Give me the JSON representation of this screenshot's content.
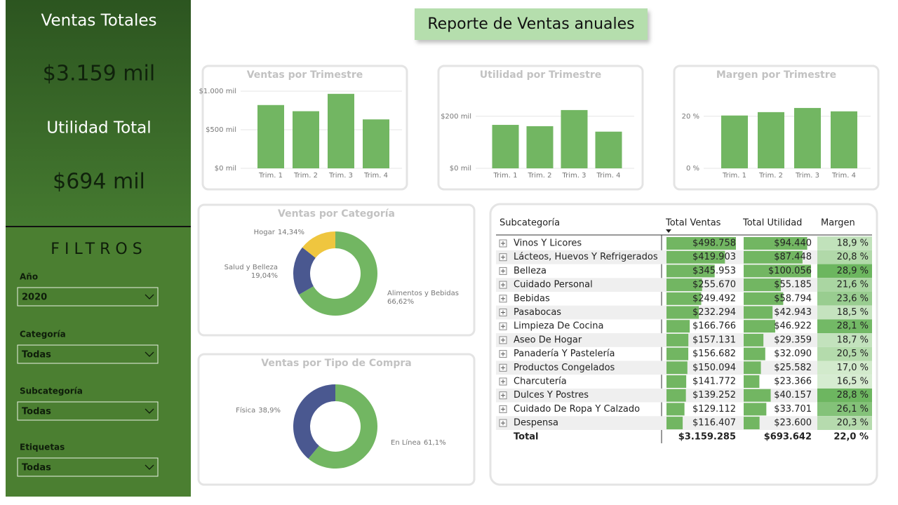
{
  "sidebar": {
    "kpis": [
      {
        "label": "Ventas Totales",
        "value": "$3.159 mil"
      },
      {
        "label": "Utilidad Total",
        "value": "$694 mil"
      }
    ],
    "filters_title": "FILTROS",
    "filters": [
      {
        "label": "Año",
        "value": "2020"
      },
      {
        "label": "Categoría",
        "value": "Todas"
      },
      {
        "label": "Subcategoría",
        "value": "Todas"
      },
      {
        "label": "Etiquetas",
        "value": "Todas"
      }
    ]
  },
  "header": {
    "title": "Reporte de Ventas anuales"
  },
  "chart_data": [
    {
      "type": "bar",
      "title": "Ventas por Trimestre",
      "categories": [
        "Trim. 1",
        "Trim. 2",
        "Trim. 3",
        "Trim. 4"
      ],
      "values": [
        820,
        740,
        965,
        634
      ],
      "color": "#72b662",
      "ylim": [
        0,
        1045
      ],
      "yticks": [
        {
          "value": 0,
          "label": "$0 mil"
        },
        {
          "value": 500,
          "label": "$500 mil"
        },
        {
          "value": 1000,
          "label": "$1.000 mil"
        }
      ],
      "grid": true
    },
    {
      "type": "bar",
      "title": "Utilidad por Trimestre",
      "categories": [
        "Trim. 1",
        "Trim. 2",
        "Trim. 3",
        "Trim. 4"
      ],
      "values": [
        167,
        162,
        224,
        141
      ],
      "color": "#72b662",
      "ylim": [
        0,
        310
      ],
      "yticks": [
        {
          "value": 0,
          "label": "$0 mil"
        },
        {
          "value": 200,
          "label": "$200 mil"
        }
      ],
      "grid": true
    },
    {
      "type": "bar",
      "title": "Margen por Trimestre",
      "categories": [
        "Trim. 1",
        "Trim. 2",
        "Trim. 3",
        "Trim. 4"
      ],
      "values": [
        20.3,
        21.6,
        23.2,
        21.9
      ],
      "color": "#72b662",
      "ylim": [
        0,
        31
      ],
      "yticks": [
        {
          "value": 0,
          "label": "0 %"
        },
        {
          "value": 20,
          "label": "20 %"
        }
      ],
      "grid": true
    },
    {
      "type": "pie",
      "title": "Ventas por Categoría",
      "categories": [
        "Alimentos y Bebidas",
        "Salud y Belleza",
        "Hogar"
      ],
      "values": [
        66.62,
        19.04,
        14.34
      ],
      "value_labels": [
        "66,62%",
        "19,04%",
        "14,34%"
      ],
      "colors": [
        "#72b662",
        "#4a5890",
        "#efc63f"
      ]
    },
    {
      "type": "pie",
      "title": "Ventas por Tipo de Compra",
      "categories": [
        "En Línea",
        "Física"
      ],
      "values": [
        61.1,
        38.9
      ],
      "value_labels": [
        "61,1%",
        "38,9%"
      ],
      "colors": [
        "#72b662",
        "#4a5890"
      ]
    }
  ],
  "table": {
    "columns": [
      "Subcategoría",
      "Total Ventas",
      "Total Utilidad",
      "Margen"
    ],
    "rows": [
      "Vinos Y Licores",
      "Lácteos, Huevos Y Refrigerados",
      "Belleza",
      "Cuidado Personal",
      "Bebidas",
      "Pasabocas",
      "Limpieza De Cocina",
      "Aseo De Hogar",
      "Panadería Y Pastelería",
      "Productos Congelados",
      "Charcutería",
      "Dulces Y Postres",
      "Cuidado De Ropa Y Calzado",
      "Despensa"
    ],
    "total_ventas": {
      "values": [
        498758,
        419903,
        345953,
        255670,
        249492,
        232294,
        166766,
        157131,
        156682,
        150094,
        141772,
        139252,
        129112,
        116407
      ],
      "value_labels": [
        "$498.758",
        "$419.903",
        "$345.953",
        "$255.670",
        "$249.492",
        "$232.294",
        "$166.766",
        "$157.131",
        "$156.682",
        "$150.094",
        "$141.772",
        "$139.252",
        "$129.112",
        "$116.407"
      ]
    },
    "total_utilidad": {
      "values": [
        94440,
        87448,
        100056,
        55185,
        58794,
        42943,
        46922,
        29359,
        32090,
        25582,
        23366,
        40157,
        33701,
        23600
      ],
      "value_labels": [
        "$94.440",
        "$87.448",
        "$100.056",
        "$55.185",
        "$58.794",
        "$42.943",
        "$46.922",
        "$29.359",
        "$32.090",
        "$25.582",
        "$23.366",
        "$40.157",
        "$33.701",
        "$23.600"
      ]
    },
    "margen": {
      "values": [
        18.9,
        20.8,
        28.9,
        21.6,
        23.6,
        18.5,
        28.1,
        18.7,
        20.5,
        17.0,
        16.5,
        28.8,
        26.1,
        20.3
      ],
      "value_labels": [
        "18,9 %",
        "20,8 %",
        "28,9 %",
        "21,6 %",
        "23,6 %",
        "18,5 %",
        "28,1 %",
        "18,7 %",
        "20,5 %",
        "17,0 %",
        "16,5 %",
        "28,8 %",
        "26,1 %",
        "20,3 %"
      ]
    },
    "total": [
      "Total",
      "$3.159.285",
      "$693.642",
      "22,0 %"
    ]
  }
}
